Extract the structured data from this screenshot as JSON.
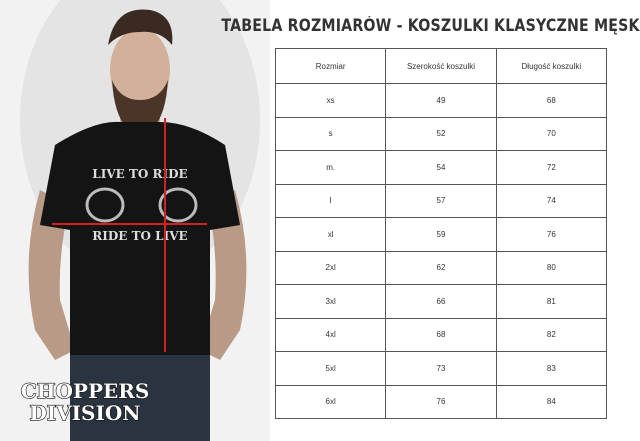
{
  "header": {
    "title": "TABELA ROZMIARÓW - KOSZULKI KLASYCZNE MĘSKIE"
  },
  "photo": {
    "shirt_text_top": "LIVE TO RIDE",
    "shirt_text_bottom": "RIDE TO LIVE",
    "logo_line_1": "CHOPPERS",
    "logo_line_2": "DIVISION"
  },
  "table": {
    "columns": [
      "Rozmiar",
      "Szerokość koszulki",
      "Długość koszulki"
    ],
    "rows": [
      [
        "xs",
        49,
        68
      ],
      [
        "s",
        52,
        70
      ],
      [
        "m.",
        54,
        72
      ],
      [
        "l",
        57,
        74
      ],
      [
        "xl",
        59,
        76
      ],
      [
        "2xl",
        62,
        80
      ],
      [
        "3xl",
        66,
        81
      ],
      [
        "4xl",
        68,
        82
      ],
      [
        "5xl",
        73,
        83
      ],
      [
        "6xl",
        76,
        84
      ]
    ]
  }
}
